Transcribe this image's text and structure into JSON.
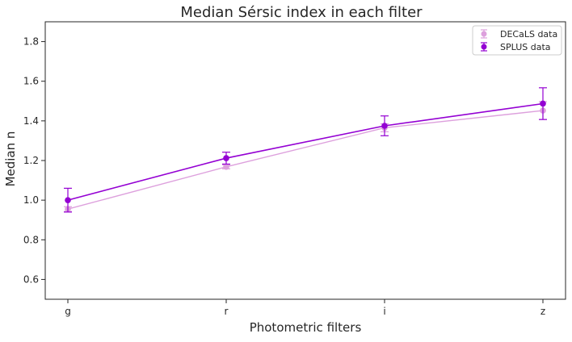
{
  "chart_data": {
    "type": "line",
    "title": "Median Sérsic index in each filter",
    "xlabel": "Photometric filters",
    "ylabel": "Median n",
    "categories": [
      "g",
      "r",
      "i",
      "z"
    ],
    "ylim": [
      0.5,
      1.9
    ],
    "yticks": [
      0.6,
      0.8,
      1.0,
      1.2,
      1.4,
      1.6,
      1.8
    ],
    "ytick_labels": [
      "0.6",
      "0.8",
      "1.0",
      "1.2",
      "1.4",
      "1.6",
      "1.8"
    ],
    "grid": false,
    "legend_position": "top-right",
    "series": [
      {
        "name": "DECaLS data",
        "values": [
          0.955,
          1.168,
          1.365,
          1.452
        ],
        "errors": [
          0.012,
          0.01,
          0.02,
          0.045
        ],
        "color": "#dda0dd"
      },
      {
        "name": "SPLUS data",
        "values": [
          1.0,
          1.212,
          1.375,
          1.487
        ],
        "errors": [
          0.06,
          0.03,
          0.05,
          0.08
        ],
        "color": "#9400d3"
      }
    ]
  }
}
